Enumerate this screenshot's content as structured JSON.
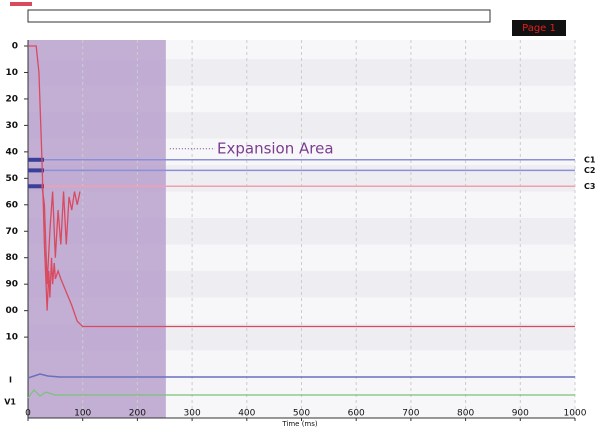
{
  "chart_data": {
    "type": "line",
    "page_label": "Page 1",
    "x_label": "Time (ms)",
    "annotation": "Expansion Area",
    "expansion_range": [
      0,
      252
    ],
    "y_inverted": true,
    "grid": true,
    "xlim": [
      0,
      1000
    ],
    "xticks": [
      0,
      100,
      200,
      300,
      400,
      500,
      600,
      700,
      800,
      900,
      1000
    ],
    "ylim": [
      0,
      116
    ],
    "yticks": [
      0,
      10,
      20,
      30,
      40,
      50,
      60,
      70,
      80,
      90,
      {
        "value": 100,
        "label": "00"
      },
      {
        "value": 110,
        "label": "10"
      }
    ],
    "channel_labels": [
      "I",
      "V1"
    ],
    "reference_lines": [
      {
        "name": "C1",
        "color": "#8a8fd6",
        "value": 43
      },
      {
        "name": "C2",
        "color": "#8a8fd6",
        "value": 47
      },
      {
        "name": "C3",
        "color": "#f0a0b0",
        "value": 53
      }
    ],
    "series": [
      {
        "color": "#d94a5f",
        "x": [
          0,
          15,
          20,
          25,
          28,
          30,
          33,
          35,
          38,
          40,
          43,
          45,
          48,
          50,
          55,
          60,
          70,
          80,
          90,
          100,
          1000
        ],
        "values": [
          0,
          0,
          10,
          40,
          60,
          75,
          90,
          100,
          85,
          95,
          80,
          90,
          82,
          88,
          85,
          88,
          93,
          98,
          104,
          106,
          106
        ]
      },
      {
        "color": "#d94a5f",
        "x": [
          25,
          30,
          35,
          40,
          45,
          50,
          55,
          60,
          65,
          70,
          75,
          80,
          85,
          90,
          95
        ],
        "values": [
          52,
          60,
          90,
          70,
          55,
          80,
          62,
          75,
          55,
          75,
          57,
          62,
          55,
          60,
          55
        ]
      }
    ]
  }
}
